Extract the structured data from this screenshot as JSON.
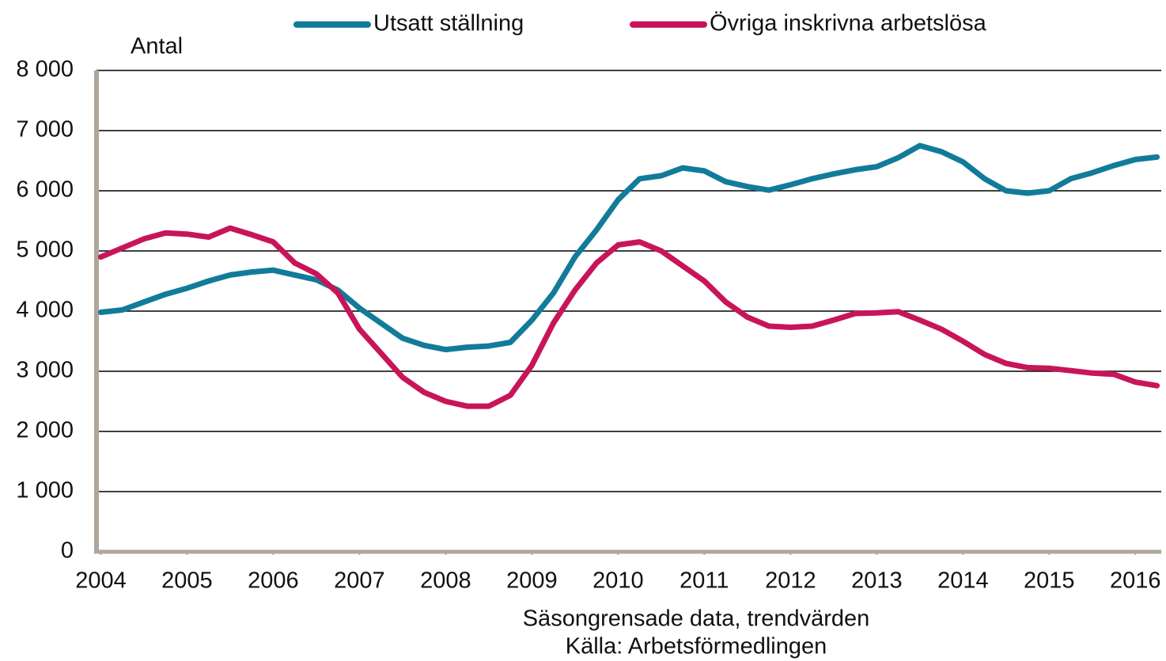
{
  "chart_data": {
    "type": "line",
    "title_y": "Antal",
    "notes": [
      "Säsongrensade data, trendvärden",
      "Källa: Arbetsförmedlingen"
    ],
    "x": [
      2004,
      2004.25,
      2004.5,
      2004.75,
      2005,
      2005.25,
      2005.5,
      2005.75,
      2006,
      2006.25,
      2006.5,
      2006.75,
      2007,
      2007.25,
      2007.5,
      2007.75,
      2008,
      2008.25,
      2008.5,
      2008.75,
      2009,
      2009.25,
      2009.5,
      2009.75,
      2010,
      2010.25,
      2010.5,
      2010.75,
      2011,
      2011.25,
      2011.5,
      2011.75,
      2012,
      2012.25,
      2012.5,
      2012.75,
      2013,
      2013.25,
      2013.5,
      2013.75,
      2014,
      2014.25,
      2014.5,
      2014.75,
      2015,
      2015.25,
      2015.5,
      2015.75,
      2016,
      2016.25
    ],
    "series": [
      {
        "name": "Utsatt ställning",
        "color": "#127b9a",
        "values": [
          3980,
          4020,
          4150,
          4280,
          4380,
          4500,
          4600,
          4650,
          4680,
          4600,
          4520,
          4350,
          4050,
          3800,
          3550,
          3430,
          3360,
          3400,
          3420,
          3480,
          3850,
          4300,
          4900,
          5350,
          5850,
          6200,
          6250,
          6380,
          6330,
          6150,
          6070,
          6010,
          6100,
          6200,
          6280,
          6350,
          6400,
          6550,
          6750,
          6650,
          6480,
          6200,
          6000,
          5960,
          6000,
          6200,
          6300,
          6420,
          6520,
          6560
        ]
      },
      {
        "name": "Övriga inskrivna arbetslösa",
        "color": "#c8155a",
        "values": [
          4900,
          5050,
          5200,
          5300,
          5280,
          5230,
          5380,
          5270,
          5150,
          4800,
          4620,
          4300,
          3700,
          3300,
          2900,
          2650,
          2500,
          2420,
          2420,
          2600,
          3100,
          3800,
          4350,
          4800,
          5100,
          5150,
          5000,
          4750,
          4500,
          4150,
          3900,
          3750,
          3730,
          3750,
          3850,
          3960,
          3970,
          3990,
          3850,
          3700,
          3500,
          3280,
          3130,
          3060,
          3050,
          3010,
          2970,
          2950,
          2820,
          2760
        ]
      }
    ],
    "xlim": [
      2003.95,
      2016.3
    ],
    "xticks": [
      2004,
      2005,
      2006,
      2007,
      2008,
      2009,
      2010,
      2011,
      2012,
      2013,
      2014,
      2015,
      2016
    ],
    "ylim": [
      0,
      8000
    ],
    "yticks": [
      0,
      {
        "value": 1000,
        "label": "1 000"
      },
      {
        "value": 2000,
        "label": "2 000"
      },
      {
        "value": 3000,
        "label": "3 000"
      },
      {
        "value": 4000,
        "label": "4 000"
      },
      {
        "value": 5000,
        "label": "5 000"
      },
      {
        "value": 6000,
        "label": "6 000"
      },
      {
        "value": 7000,
        "label": "7 000"
      },
      {
        "value": 8000,
        "label": "8 000"
      }
    ],
    "grid": true
  }
}
